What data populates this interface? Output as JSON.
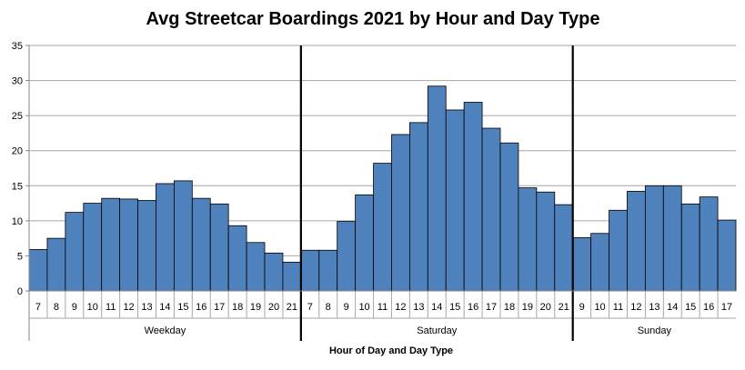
{
  "chart_data": {
    "type": "bar",
    "title": "Avg Streetcar Boardings 2021 by Hour and Day Type",
    "xlabel": "Hour of Day and Day Type",
    "ylabel": "",
    "ylim": [
      0,
      35
    ],
    "yticks": [
      0,
      5,
      10,
      15,
      20,
      25,
      30,
      35
    ],
    "grid": true,
    "bar_color": "#4f81bd",
    "groups": [
      {
        "name": "Weekday",
        "categories": [
          "7",
          "8",
          "9",
          "10",
          "11",
          "12",
          "13",
          "14",
          "15",
          "16",
          "17",
          "18",
          "19",
          "20",
          "21"
        ],
        "values": [
          5.9,
          7.5,
          11.2,
          12.5,
          13.2,
          13.1,
          12.9,
          15.3,
          15.7,
          13.2,
          12.4,
          9.3,
          6.9,
          5.4,
          4.1
        ]
      },
      {
        "name": "Saturday",
        "categories": [
          "7",
          "8",
          "9",
          "10",
          "11",
          "12",
          "13",
          "14",
          "15",
          "16",
          "17",
          "18",
          "19",
          "20",
          "21"
        ],
        "values": [
          5.8,
          5.8,
          9.9,
          13.7,
          18.2,
          22.3,
          24.0,
          29.2,
          25.8,
          26.9,
          23.2,
          21.1,
          14.7,
          14.1,
          12.3
        ]
      },
      {
        "name": "Sunday",
        "categories": [
          "9",
          "10",
          "11",
          "12",
          "13",
          "14",
          "15",
          "16",
          "17"
        ],
        "values": [
          7.6,
          8.2,
          11.5,
          14.2,
          15.0,
          15.0,
          12.4,
          13.4,
          10.1
        ]
      }
    ]
  }
}
